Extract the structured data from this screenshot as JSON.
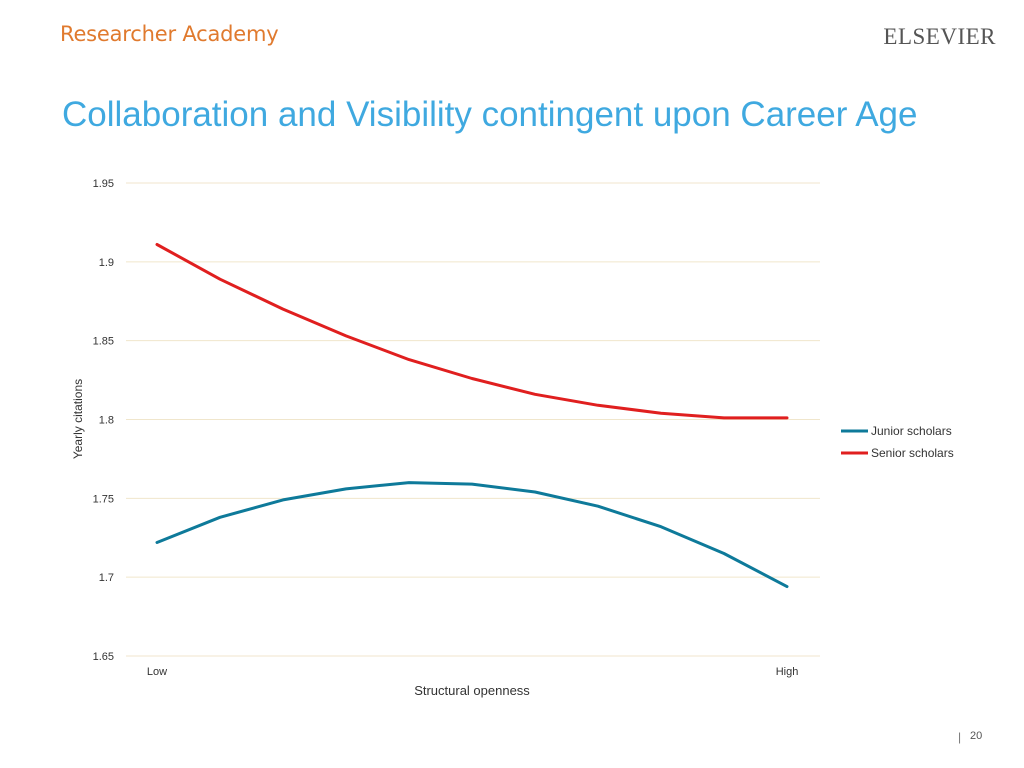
{
  "header": {
    "brand": "Researcher Academy",
    "logo_text": "ELSEVIER"
  },
  "slide": {
    "title": "Collaboration and Visibility contingent upon Career Age",
    "page_number": "20",
    "separator": "|"
  },
  "colors": {
    "brand": "#e07a2e",
    "title": "#3fa9e0",
    "junior": "#0e7a9a",
    "senior": "#e01f1f",
    "grid": "#f0e6cc"
  },
  "chart_data": {
    "type": "line",
    "xlabel": "Structural openness",
    "ylabel": "Yearly citations",
    "ylim": [
      1.65,
      1.95
    ],
    "yticks": [
      "1.95",
      "1.9",
      "1.85",
      "1.8",
      "1.75",
      "1.7",
      "1.65"
    ],
    "ytick_values": [
      1.95,
      1.9,
      1.85,
      1.8,
      1.75,
      1.7,
      1.65
    ],
    "x_tick_labels": [
      "Low",
      "High"
    ],
    "x": [
      0,
      1,
      2,
      3,
      4,
      5,
      6,
      7,
      8,
      9,
      10
    ],
    "grid": true,
    "legend_position": "right",
    "series": [
      {
        "name": "Junior scholars",
        "color": "#0e7a9a",
        "values": [
          1.722,
          1.738,
          1.749,
          1.756,
          1.76,
          1.759,
          1.754,
          1.745,
          1.732,
          1.715,
          1.694
        ]
      },
      {
        "name": "Senior scholars",
        "color": "#e01f1f",
        "values": [
          1.911,
          1.889,
          1.87,
          1.853,
          1.838,
          1.826,
          1.816,
          1.809,
          1.804,
          1.801,
          1.801
        ]
      }
    ]
  }
}
